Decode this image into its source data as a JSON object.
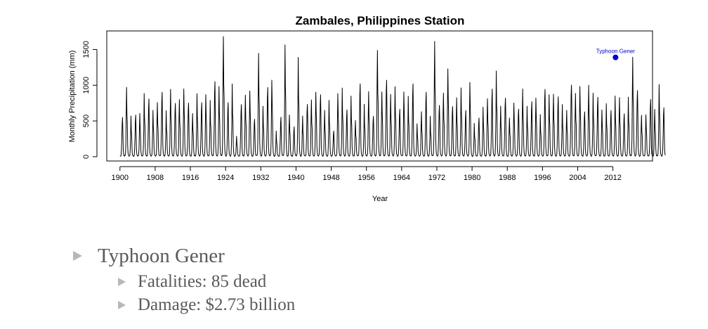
{
  "chart_data": {
    "type": "line",
    "title": "Zambales, Philippines Station",
    "xlabel": "Year",
    "ylabel": "Monthly Precipitation (mm)",
    "xlim": [
      1897,
      2021
    ],
    "ylim": [
      -60,
      1760
    ],
    "x_ticks": [
      1900,
      1908,
      1916,
      1924,
      1932,
      1940,
      1948,
      1956,
      1964,
      1972,
      1980,
      1988,
      1996,
      2004,
      2012
    ],
    "y_ticks": [
      0,
      500,
      1000,
      1500
    ],
    "series": [
      {
        "color": "#000000",
        "x_start": 1900,
        "x_step_per_value": 1,
        "note_values": "annual peak monthly precipitation (mm), one per year; each year drawn as a seasonal cycle with dry-season troughs near 0",
        "annual_peak": [
          540,
          970,
          560,
          580,
          600,
          880,
          800,
          650,
          750,
          900,
          640,
          940,
          740,
          790,
          940,
          750,
          600,
          880,
          750,
          860,
          780,
          1050,
          980,
          1680,
          750,
          1010,
          280,
          720,
          860,
          920,
          520,
          1440,
          700,
          960,
          1070,
          350,
          550,
          1560,
          580,
          410,
          1390,
          560,
          730,
          790,
          900,
          860,
          640,
          780,
          360,
          880,
          960,
          650,
          840,
          500,
          1020,
          730,
          910,
          560,
          1480,
          900,
          1060,
          870,
          980,
          660,
          900,
          840,
          1010,
          460,
          620,
          900,
          560,
          1610,
          710,
          890,
          1220,
          700,
          820,
          960,
          640,
          1030,
          460,
          540,
          690,
          810,
          940,
          1190,
          700,
          820,
          540,
          750,
          660,
          940,
          700,
          760,
          820,
          590,
          940,
          860,
          870,
          830,
          730,
          640,
          1000,
          880,
          980,
          620,
          1000,
          880,
          830,
          650,
          740,
          640,
          840,
          820,
          600,
          830,
          1390,
          920,
          570,
          580,
          800,
          660,
          1010,
          680
        ]
      }
    ],
    "annotations": [
      {
        "text": "Typhoon Gener",
        "x": 2012.6,
        "y": 1390,
        "color": "#0000cc"
      }
    ]
  },
  "bullets": {
    "main": "Typhoon Gener",
    "subs": [
      "Fatalities: 85 dead",
      "Damage: $2.73 billion"
    ]
  }
}
